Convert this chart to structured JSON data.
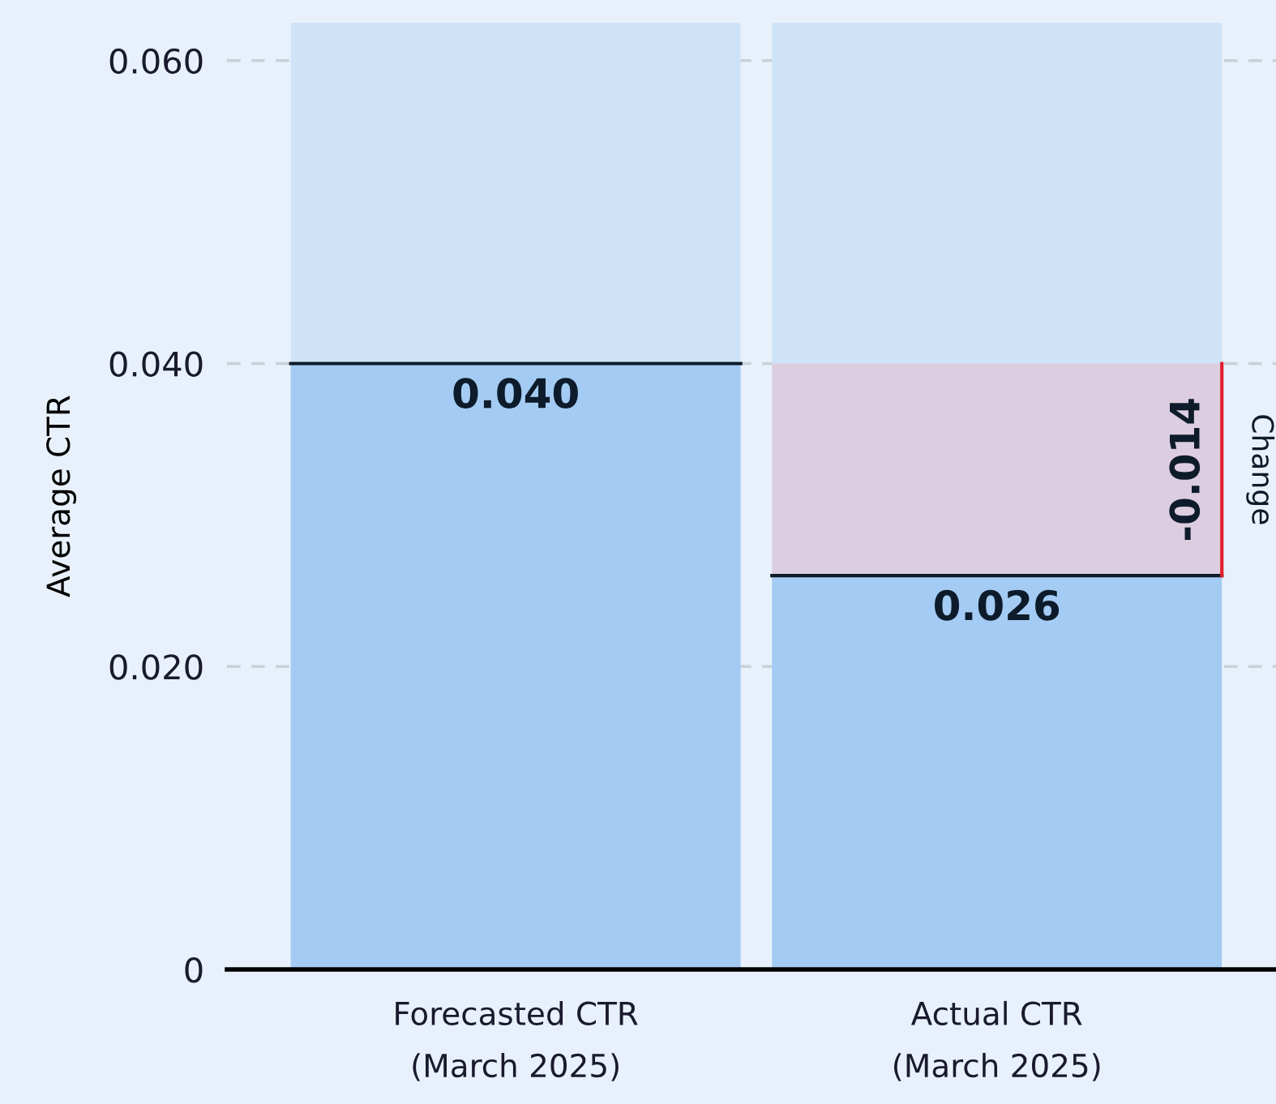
{
  "chart_data": {
    "type": "bar",
    "ylabel": "Average CTR",
    "categories": [
      "Forecasted CTR\n(March 2025)",
      "Actual CTR\n(March 2025)"
    ],
    "series": [
      {
        "color": "#a3cbf3",
        "values": [
          0.04,
          0.026
        ],
        "value_labels": [
          "0.040",
          "0.026"
        ]
      },
      {
        "color": "#cfe3f8",
        "values": [
          0.0225,
          0.0365
        ]
      },
      {
        "color": "#dccde0",
        "base": [
          null,
          0.04
        ],
        "values": [
          null,
          -0.014
        ],
        "value_labels": [
          null,
          "-0.014"
        ]
      }
    ],
    "ylim": [
      0,
      0.0625
    ],
    "yticks": [
      {
        "value": 0,
        "label": "0"
      },
      {
        "value": 0.02,
        "label": "0.020"
      },
      {
        "value": 0.04,
        "label": "0.040"
      },
      {
        "value": 0.06,
        "label": "0.060"
      }
    ],
    "stacked": true,
    "grid": "y",
    "annotations": [
      "Change"
    ]
  }
}
